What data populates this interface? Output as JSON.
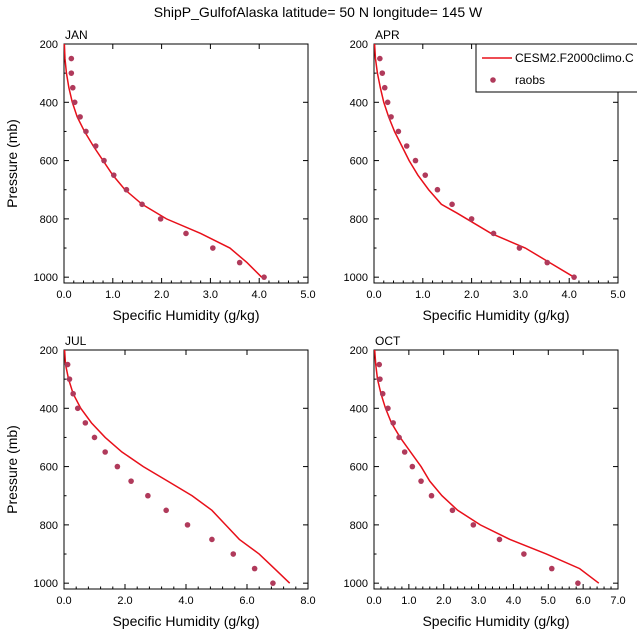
{
  "title": "ShipP_GulfofAlaska  latitude= 50 N longitude= 145 W",
  "legend": {
    "model_label": "CESM2.F2000climo.C",
    "obs_label": "raobs",
    "model_color": "#e8101a",
    "obs_color": "#b03a5b"
  },
  "chart_data": [
    {
      "type": "line",
      "label": "JAN",
      "xlabel": "Specific Humidity (g/kg)",
      "ylabel": "Pressure (mb)",
      "xlim": [
        0,
        5
      ],
      "ylim": [
        200,
        1020
      ],
      "xticks": [
        "0.0",
        "1.0",
        "2.0",
        "3.0",
        "4.0",
        "5.0"
      ],
      "yticks": [
        "200",
        "400",
        "600",
        "800",
        "1000"
      ],
      "model": {
        "x": [
          0.02,
          0.05,
          0.1,
          0.17,
          0.27,
          0.42,
          0.6,
          0.8,
          1.0,
          1.25,
          1.6,
          2.1,
          2.8,
          3.4,
          3.75,
          4.05
        ],
        "y": [
          250,
          300,
          350,
          400,
          450,
          500,
          550,
          600,
          650,
          700,
          750,
          800,
          850,
          900,
          950,
          1000
        ]
      },
      "obs": {
        "x": [
          0.15,
          0.15,
          0.18,
          0.22,
          0.33,
          0.45,
          0.65,
          0.82,
          1.02,
          1.28,
          1.6,
          1.98,
          2.5,
          3.05,
          3.6,
          4.1
        ],
        "y": [
          250,
          300,
          350,
          400,
          450,
          500,
          550,
          600,
          650,
          700,
          750,
          800,
          850,
          900,
          950,
          1000
        ]
      }
    },
    {
      "type": "line",
      "label": "APR",
      "xlabel": "Specific Humidity (g/kg)",
      "ylabel": "",
      "xlim": [
        0,
        5
      ],
      "ylim": [
        200,
        1020
      ],
      "xticks": [
        "0.0",
        "1.0",
        "2.0",
        "3.0",
        "4.0",
        "5.0"
      ],
      "yticks": [
        "200",
        "400",
        "600",
        "800",
        "1000"
      ],
      "model": {
        "x": [
          0.03,
          0.07,
          0.13,
          0.2,
          0.3,
          0.42,
          0.57,
          0.72,
          0.9,
          1.12,
          1.38,
          1.7,
          2.4,
          3.1,
          3.6,
          4.1
        ],
        "y": [
          250,
          300,
          350,
          400,
          450,
          500,
          550,
          600,
          650,
          700,
          750,
          780,
          850,
          900,
          950,
          1000
        ]
      },
      "obs": {
        "x": [
          0.12,
          0.17,
          0.22,
          0.28,
          0.35,
          0.5,
          0.67,
          0.85,
          1.05,
          1.3,
          1.6,
          2.0,
          2.45,
          2.98,
          3.55,
          4.1
        ],
        "y": [
          250,
          300,
          350,
          400,
          450,
          500,
          550,
          600,
          650,
          700,
          750,
          800,
          850,
          900,
          950,
          1000
        ]
      }
    },
    {
      "type": "line",
      "label": "JUL",
      "xlabel": "Specific Humidity (g/kg)",
      "ylabel": "Pressure (mb)",
      "xlim": [
        0,
        8
      ],
      "ylim": [
        200,
        1020
      ],
      "xticks": [
        "0.0",
        "2.0",
        "4.0",
        "6.0",
        "8.0"
      ],
      "yticks": [
        "200",
        "400",
        "600",
        "800",
        "1000"
      ],
      "model": {
        "x": [
          0.05,
          0.15,
          0.3,
          0.55,
          0.9,
          1.35,
          1.9,
          2.6,
          3.4,
          4.2,
          4.85,
          5.3,
          5.75,
          6.4,
          6.9,
          7.4
        ],
        "y": [
          250,
          300,
          350,
          400,
          450,
          500,
          550,
          600,
          650,
          700,
          750,
          800,
          850,
          900,
          950,
          1000
        ]
      },
      "obs": {
        "x": [
          0.12,
          0.18,
          0.3,
          0.45,
          0.7,
          1.0,
          1.35,
          1.75,
          2.2,
          2.75,
          3.35,
          4.05,
          4.85,
          5.55,
          6.25,
          6.85
        ],
        "y": [
          250,
          300,
          350,
          400,
          450,
          500,
          550,
          600,
          650,
          700,
          750,
          800,
          850,
          900,
          950,
          1000
        ]
      }
    },
    {
      "type": "line",
      "label": "OCT",
      "xlabel": "Specific Humidity (g/kg)",
      "ylabel": "",
      "xlim": [
        0,
        7
      ],
      "ylim": [
        200,
        1020
      ],
      "xticks": [
        "0.0",
        "1.0",
        "2.0",
        "3.0",
        "4.0",
        "5.0",
        "6.0",
        "7.0"
      ],
      "yticks": [
        "200",
        "400",
        "600",
        "800",
        "1000"
      ],
      "model": {
        "x": [
          0.05,
          0.1,
          0.2,
          0.33,
          0.5,
          0.75,
          1.05,
          1.35,
          1.6,
          1.95,
          2.4,
          3.05,
          3.9,
          4.95,
          5.9,
          6.45
        ],
        "y": [
          250,
          300,
          350,
          400,
          450,
          500,
          550,
          600,
          650,
          700,
          750,
          800,
          850,
          900,
          950,
          1000
        ]
      },
      "obs": {
        "x": [
          0.15,
          0.17,
          0.25,
          0.4,
          0.55,
          0.72,
          0.88,
          1.1,
          1.35,
          1.65,
          2.25,
          2.85,
          3.6,
          4.3,
          5.1,
          5.85
        ],
        "y": [
          250,
          300,
          350,
          400,
          450,
          500,
          550,
          600,
          650,
          700,
          750,
          800,
          850,
          900,
          950,
          1000
        ]
      }
    }
  ]
}
